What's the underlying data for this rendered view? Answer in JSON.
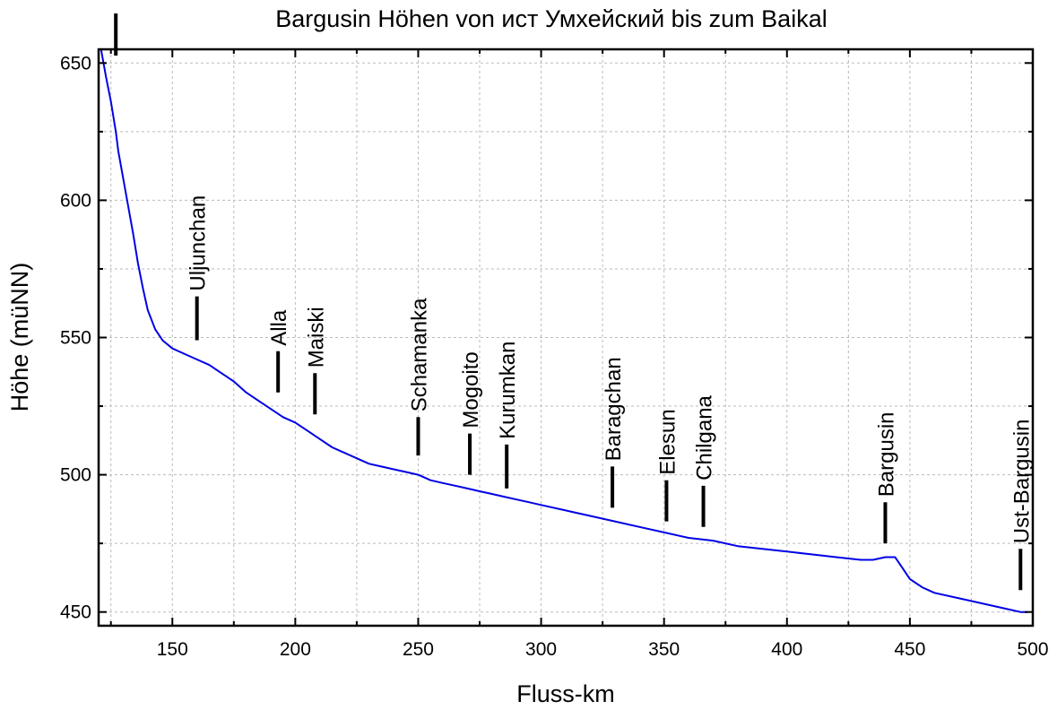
{
  "chart_data": {
    "type": "line",
    "title": "Bargusin Höhen von ист Умхейский bis zum Baikal",
    "xlabel": "Fluss-km",
    "ylabel": "Höhe (müNN)",
    "xlim": [
      120,
      500
    ],
    "ylim": [
      445,
      655
    ],
    "x_ticks": [
      150,
      200,
      250,
      300,
      350,
      400,
      450,
      500
    ],
    "y_ticks": [
      450,
      500,
      550,
      600,
      650
    ],
    "grid": true,
    "series": [
      {
        "color": "#0000e6",
        "x": [
          121,
          123,
          125,
          127,
          128,
          130,
          132,
          134,
          136,
          138,
          140,
          143,
          146,
          150,
          155,
          160,
          165,
          170,
          175,
          180,
          185,
          190,
          195,
          200,
          205,
          210,
          215,
          220,
          225,
          230,
          235,
          240,
          245,
          250,
          255,
          260,
          265,
          270,
          275,
          280,
          285,
          290,
          295,
          300,
          310,
          320,
          330,
          340,
          350,
          360,
          370,
          380,
          390,
          400,
          410,
          420,
          430,
          435,
          440,
          444,
          447,
          450,
          455,
          460,
          470,
          480,
          490,
          495,
          498
        ],
        "y": [
          655,
          645,
          636,
          625,
          618,
          608,
          598,
          588,
          577,
          568,
          560,
          553,
          549,
          546,
          544,
          542,
          540,
          537,
          534,
          530,
          527,
          524,
          521,
          519,
          516,
          513,
          510,
          508,
          506,
          504,
          503,
          502,
          501,
          500,
          498,
          497,
          496,
          495,
          494,
          493,
          492,
          491,
          490,
          489,
          487,
          485,
          483,
          481,
          479,
          477,
          476,
          474,
          473,
          472,
          471,
          470,
          469,
          469,
          470,
          470,
          466,
          462,
          459,
          457,
          455,
          453,
          451,
          450,
          450
        ]
      }
    ],
    "annotations": [
      {
        "label": "Uljunchan",
        "x": 160,
        "y_top": 565,
        "y_bottom": 549
      },
      {
        "label": "Alla",
        "x": 193,
        "y_top": 545,
        "y_bottom": 530
      },
      {
        "label": "Maiski",
        "x": 208,
        "y_top": 537,
        "y_bottom": 522
      },
      {
        "label": "Schamanka",
        "x": 250,
        "y_top": 521,
        "y_bottom": 507
      },
      {
        "label": "Mogoito",
        "x": 271,
        "y_top": 515,
        "y_bottom": 500
      },
      {
        "label": "Kurumkan",
        "x": 286,
        "y_top": 511,
        "y_bottom": 495
      },
      {
        "label": "Baragchan",
        "x": 329,
        "y_top": 503,
        "y_bottom": 488
      },
      {
        "label": "Elesun",
        "x": 351,
        "y_top": 498,
        "y_bottom": 483
      },
      {
        "label": "Chilgana",
        "x": 366,
        "y_top": 496,
        "y_bottom": 481
      },
      {
        "label": "Bargusin",
        "x": 440,
        "y_top": 490,
        "y_bottom": 475
      },
      {
        "label": "Ust-Bargusin",
        "x": 495,
        "y_top": 473,
        "y_bottom": 458
      }
    ],
    "top_marker_x": 127
  }
}
